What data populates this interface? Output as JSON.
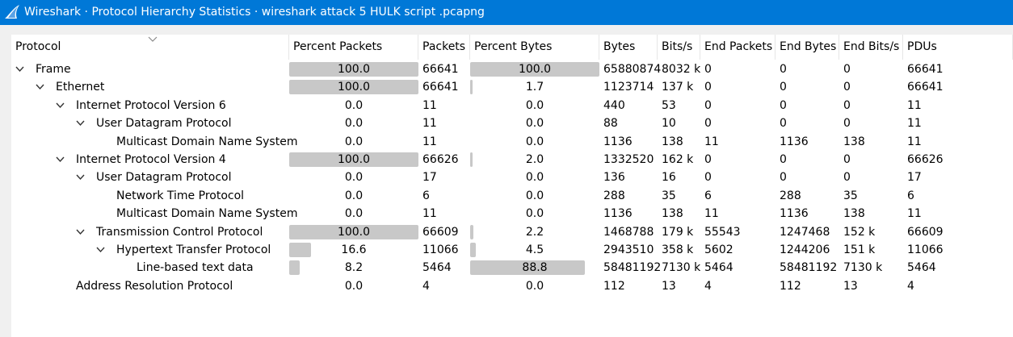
{
  "window": {
    "title": "Wireshark · Protocol Hierarchy Statistics · wireshark attack 5 HULK script .pcapng"
  },
  "columns": [
    "Protocol",
    "Percent Packets",
    "Packets",
    "Percent Bytes",
    "Bytes",
    "Bits/s",
    "End Packets",
    "End Bytes",
    "End Bits/s",
    "PDUs"
  ],
  "rows": [
    {
      "depth": 0,
      "expanded": true,
      "protocol": "Frame",
      "pct_packets": "100.0",
      "pct_packets_value": 100.0,
      "packets": "66641",
      "pct_bytes": "100.0",
      "pct_bytes_value": 100.0,
      "bytes": "65880874",
      "bits_s": "8032 k",
      "end_packets": "0",
      "end_bytes": "0",
      "end_bits_s": "0",
      "pdus": "66641"
    },
    {
      "depth": 1,
      "expanded": true,
      "protocol": "Ethernet",
      "pct_packets": "100.0",
      "pct_packets_value": 100.0,
      "packets": "66641",
      "pct_bytes": "1.7",
      "pct_bytes_value": 1.7,
      "bytes": "1123714",
      "bits_s": "137 k",
      "end_packets": "0",
      "end_bytes": "0",
      "end_bits_s": "0",
      "pdus": "66641"
    },
    {
      "depth": 2,
      "expanded": true,
      "protocol": "Internet Protocol Version 6",
      "pct_packets": "0.0",
      "pct_packets_value": 0.0,
      "packets": "11",
      "pct_bytes": "0.0",
      "pct_bytes_value": 0.0,
      "bytes": "440",
      "bits_s": "53",
      "end_packets": "0",
      "end_bytes": "0",
      "end_bits_s": "0",
      "pdus": "11"
    },
    {
      "depth": 3,
      "expanded": true,
      "protocol": "User Datagram Protocol",
      "pct_packets": "0.0",
      "pct_packets_value": 0.0,
      "packets": "11",
      "pct_bytes": "0.0",
      "pct_bytes_value": 0.0,
      "bytes": "88",
      "bits_s": "10",
      "end_packets": "0",
      "end_bytes": "0",
      "end_bits_s": "0",
      "pdus": "11"
    },
    {
      "depth": 4,
      "expanded": null,
      "protocol": "Multicast Domain Name System",
      "pct_packets": "0.0",
      "pct_packets_value": 0.0,
      "packets": "11",
      "pct_bytes": "0.0",
      "pct_bytes_value": 0.0,
      "bytes": "1136",
      "bits_s": "138",
      "end_packets": "11",
      "end_bytes": "1136",
      "end_bits_s": "138",
      "pdus": "11"
    },
    {
      "depth": 2,
      "expanded": true,
      "protocol": "Internet Protocol Version 4",
      "pct_packets": "100.0",
      "pct_packets_value": 100.0,
      "packets": "66626",
      "pct_bytes": "2.0",
      "pct_bytes_value": 2.0,
      "bytes": "1332520",
      "bits_s": "162 k",
      "end_packets": "0",
      "end_bytes": "0",
      "end_bits_s": "0",
      "pdus": "66626"
    },
    {
      "depth": 3,
      "expanded": true,
      "protocol": "User Datagram Protocol",
      "pct_packets": "0.0",
      "pct_packets_value": 0.0,
      "packets": "17",
      "pct_bytes": "0.0",
      "pct_bytes_value": 0.0,
      "bytes": "136",
      "bits_s": "16",
      "end_packets": "0",
      "end_bytes": "0",
      "end_bits_s": "0",
      "pdus": "17"
    },
    {
      "depth": 4,
      "expanded": null,
      "protocol": "Network Time Protocol",
      "pct_packets": "0.0",
      "pct_packets_value": 0.0,
      "packets": "6",
      "pct_bytes": "0.0",
      "pct_bytes_value": 0.0,
      "bytes": "288",
      "bits_s": "35",
      "end_packets": "6",
      "end_bytes": "288",
      "end_bits_s": "35",
      "pdus": "6"
    },
    {
      "depth": 4,
      "expanded": null,
      "protocol": "Multicast Domain Name System",
      "pct_packets": "0.0",
      "pct_packets_value": 0.0,
      "packets": "11",
      "pct_bytes": "0.0",
      "pct_bytes_value": 0.0,
      "bytes": "1136",
      "bits_s": "138",
      "end_packets": "11",
      "end_bytes": "1136",
      "end_bits_s": "138",
      "pdus": "11"
    },
    {
      "depth": 3,
      "expanded": true,
      "protocol": "Transmission Control Protocol",
      "pct_packets": "100.0",
      "pct_packets_value": 100.0,
      "packets": "66609",
      "pct_bytes": "2.2",
      "pct_bytes_value": 2.2,
      "bytes": "1468788",
      "bits_s": "179 k",
      "end_packets": "55543",
      "end_bytes": "1247468",
      "end_bits_s": "152 k",
      "pdus": "66609"
    },
    {
      "depth": 4,
      "expanded": true,
      "protocol": "Hypertext Transfer Protocol",
      "pct_packets": "16.6",
      "pct_packets_value": 16.6,
      "packets": "11066",
      "pct_bytes": "4.5",
      "pct_bytes_value": 4.5,
      "bytes": "2943510",
      "bits_s": "358 k",
      "end_packets": "5602",
      "end_bytes": "1244206",
      "end_bits_s": "151 k",
      "pdus": "11066"
    },
    {
      "depth": 5,
      "expanded": null,
      "protocol": "Line-based text data",
      "pct_packets": "8.2",
      "pct_packets_value": 8.2,
      "packets": "5464",
      "pct_bytes": "88.8",
      "pct_bytes_value": 88.8,
      "bytes": "58481192",
      "bits_s": "7130 k",
      "end_packets": "5464",
      "end_bytes": "58481192",
      "end_bits_s": "7130 k",
      "pdus": "5464"
    },
    {
      "depth": 2,
      "expanded": null,
      "protocol": "Address Resolution Protocol",
      "pct_packets": "0.0",
      "pct_packets_value": 0.0,
      "packets": "4",
      "pct_bytes": "0.0",
      "pct_bytes_value": 0.0,
      "bytes": "112",
      "bits_s": "13",
      "end_packets": "4",
      "end_bytes": "112",
      "end_bits_s": "13",
      "pdus": "4"
    }
  ],
  "colors": {
    "titlebar": "#0078d7",
    "percent_bar": "#c8c8c8"
  },
  "icons": [
    "wireshark-fin-icon",
    "chevron-down-icon",
    "sort-indicator-icon"
  ]
}
